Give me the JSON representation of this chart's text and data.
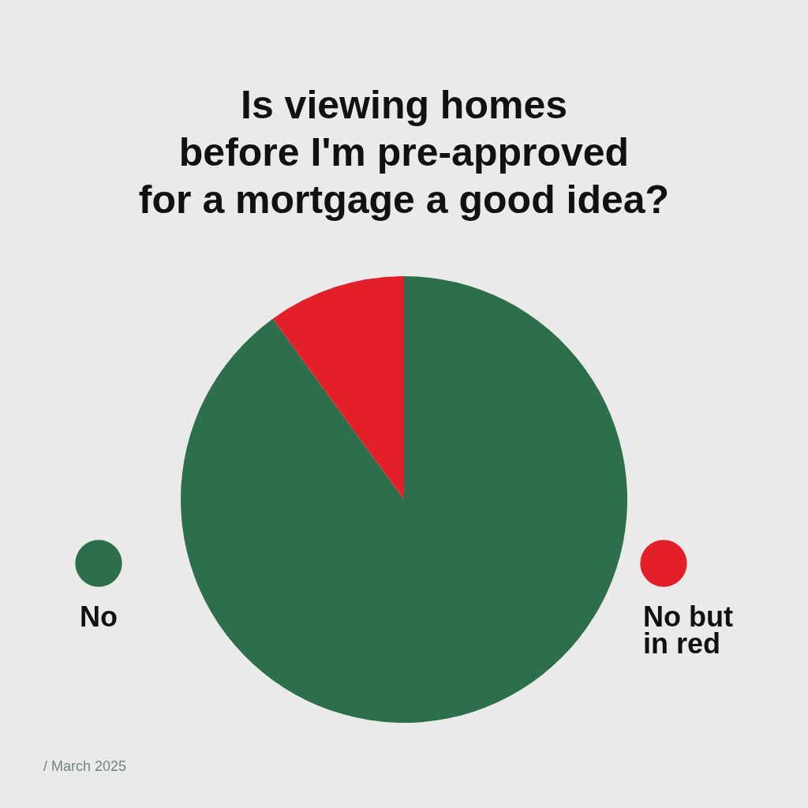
{
  "chart_data": {
    "type": "pie",
    "title": "Is viewing homes\nbefore I'm pre-approved\nfor a mortgage a good idea?",
    "categories": [
      "No",
      "No but in red"
    ],
    "values": [
      90,
      10
    ],
    "colors": [
      "#2d6e4b",
      "#e3202a"
    ],
    "legend": "left",
    "annotations": [
      "/ March 2025"
    ]
  }
}
